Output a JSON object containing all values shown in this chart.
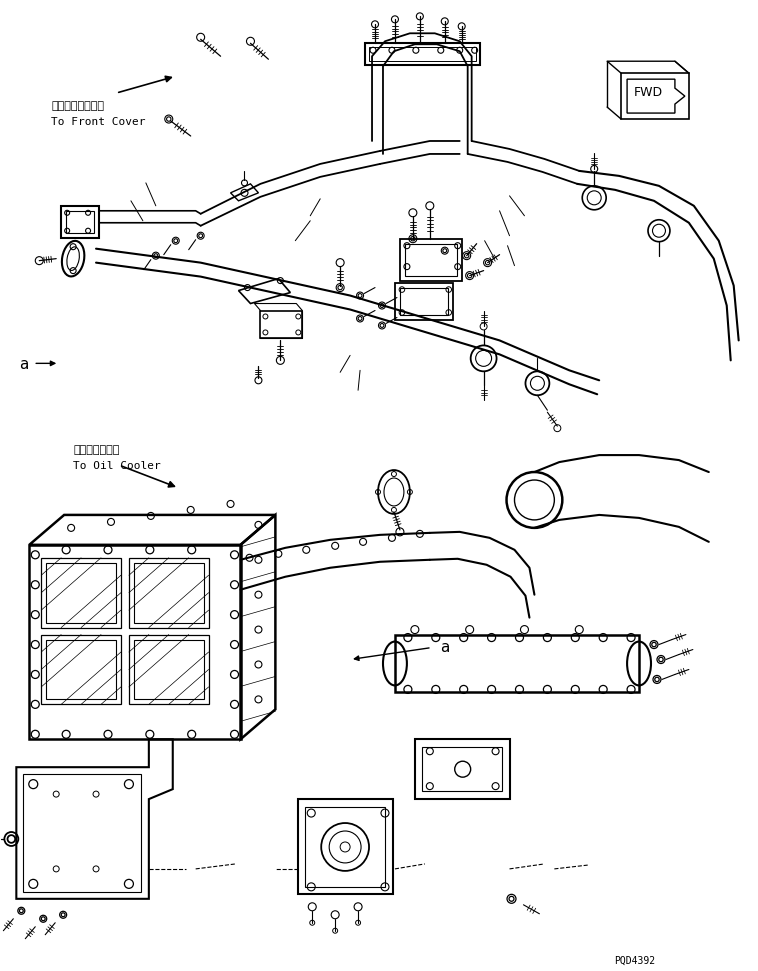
{
  "bg_color": "#ffffff",
  "line_color": "#000000",
  "fig_width": 7.58,
  "fig_height": 9.71,
  "dpi": 100,
  "label_front_cover_jp": "フロントカバーヘ",
  "label_front_cover_en": "To Front Cover",
  "label_oil_cooler_jp": "オイルクーラヘ",
  "label_oil_cooler_en": "To Oil Cooler",
  "label_fwd": "FWD",
  "part_number": "PQD4392"
}
